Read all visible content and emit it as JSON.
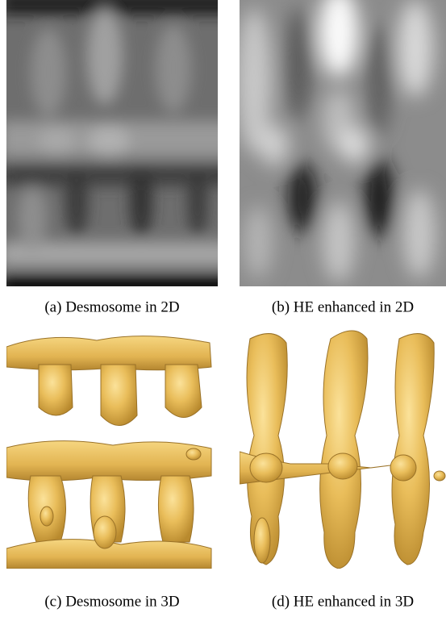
{
  "figure": {
    "subfigures": [
      {
        "caption": "(a) Desmosome in 2D"
      },
      {
        "caption": "(b) HE enhanced in 2D"
      },
      {
        "caption": "(c) Desmosome in 3D"
      },
      {
        "caption": "(d) HE enhanced in 3D"
      }
    ]
  }
}
